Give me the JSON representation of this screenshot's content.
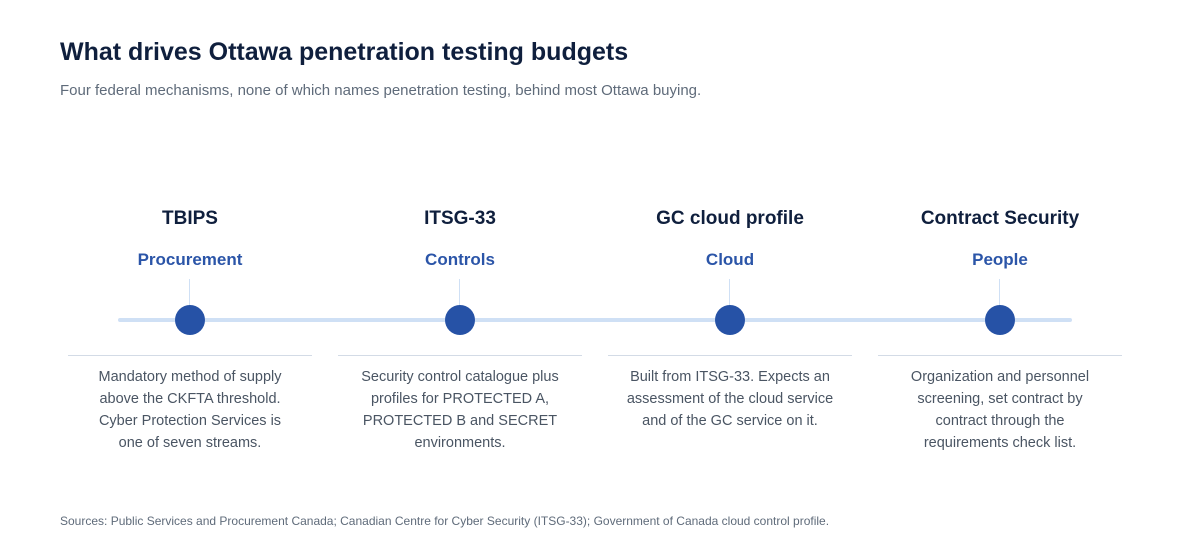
{
  "title": "What drives Ottawa penetration testing budgets",
  "subtitle": "Four federal mechanisms, none of which names penetration testing, behind most Ottawa buying.",
  "colors": {
    "title": "#0f1f3d",
    "accent": "#2652a6",
    "category": "#2b55a8",
    "timeline": "#cfe0f5",
    "body_text": "#4a5563",
    "muted": "#5f6b7a"
  },
  "milestones": [
    {
      "name": "TBIPS",
      "category": "Procurement",
      "description": "Mandatory method of supply above the CKFTA threshold. Cyber Protection Services is one of seven streams."
    },
    {
      "name": "ITSG-33",
      "category": "Controls",
      "description": "Security control catalogue plus profiles for PROTECTED A, PROTECTED B and SECRET environments."
    },
    {
      "name": "GC cloud profile",
      "category": "Cloud",
      "description": "Built from ITSG-33. Expects an assessment of the cloud service and of the GC service on it."
    },
    {
      "name": "Contract Security",
      "category": "People",
      "description": "Organization and personnel screening, set contract by contract through the requirements check list."
    }
  ],
  "sources": "Sources: Public Services and Procurement Canada; Canadian Centre for Cyber Security (ITSG-33); Government of Canada cloud control profile."
}
